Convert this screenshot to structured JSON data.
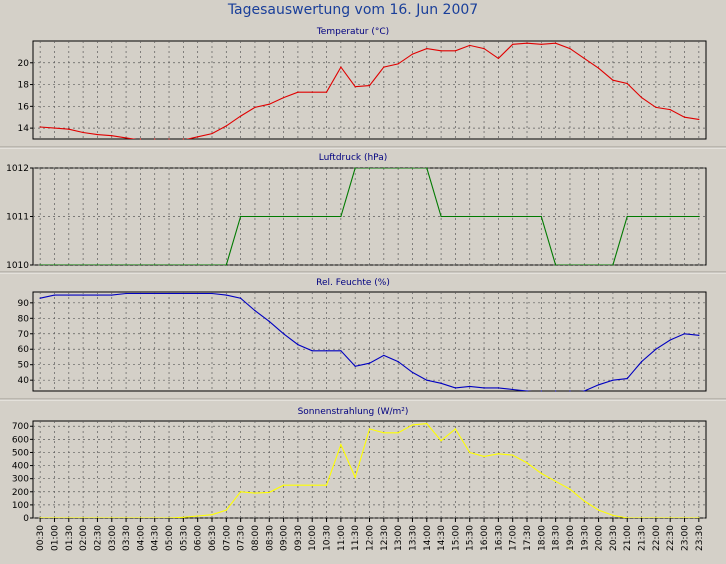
{
  "page": {
    "title": "Tagesauswertung vom 16. Jun 2007",
    "background": "#d4d0c8",
    "title_color": "#1a3f9a"
  },
  "time_labels": [
    "00:30",
    "01:00",
    "01:30",
    "02:00",
    "02:30",
    "03:00",
    "03:30",
    "04:00",
    "04:30",
    "05:00",
    "05:30",
    "06:00",
    "06:30",
    "07:00",
    "07:30",
    "08:00",
    "08:30",
    "09:00",
    "09:30",
    "10:00",
    "10:30",
    "11:00",
    "11:30",
    "12:00",
    "12:30",
    "13:00",
    "13:30",
    "14:00",
    "14:30",
    "15:00",
    "15:30",
    "16:00",
    "16:30",
    "17:00",
    "17:30",
    "18:00",
    "18:30",
    "19:00",
    "19:30",
    "20:00",
    "20:30",
    "21:00",
    "21:30",
    "22:00",
    "22:30",
    "23:00",
    "23:30"
  ],
  "chart_data": [
    {
      "type": "line",
      "title": "Temperatur (°C)",
      "color": "#e00000",
      "ylim": [
        13,
        22
      ],
      "yticks": [
        14,
        16,
        18,
        20
      ],
      "grid": true,
      "x": [
        "00:30",
        "01:00",
        "01:30",
        "02:00",
        "02:30",
        "03:00",
        "03:30",
        "04:00",
        "04:30",
        "05:00",
        "05:30",
        "06:00",
        "06:30",
        "07:00",
        "07:30",
        "08:00",
        "08:30",
        "09:00",
        "09:30",
        "10:00",
        "10:30",
        "11:00",
        "11:30",
        "12:00",
        "12:30",
        "13:00",
        "13:30",
        "14:00",
        "14:30",
        "15:00",
        "15:30",
        "16:00",
        "16:30",
        "17:00",
        "17:30",
        "18:00",
        "18:30",
        "19:00",
        "19:30",
        "20:00",
        "20:30",
        "21:00",
        "21:30",
        "22:00",
        "22:30",
        "23:00",
        "23:30"
      ],
      "values": [
        14.1,
        14.0,
        13.9,
        13.6,
        13.4,
        13.3,
        13.1,
        12.9,
        12.9,
        12.9,
        12.9,
        13.2,
        13.5,
        14.2,
        15.1,
        15.9,
        16.2,
        16.8,
        17.3,
        17.3,
        17.3,
        19.6,
        17.8,
        17.9,
        19.6,
        19.9,
        20.8,
        21.3,
        21.1,
        21.1,
        21.6,
        21.3,
        20.4,
        21.7,
        21.8,
        21.7,
        21.8,
        21.3,
        20.4,
        19.5,
        18.4,
        18.1,
        16.8,
        15.9,
        15.7,
        15.0,
        14.8
      ]
    },
    {
      "type": "line",
      "title": "Luftdruck (hPa)",
      "color": "#007a00",
      "ylim": [
        1010,
        1012
      ],
      "yticks": [
        1010,
        1011,
        1012
      ],
      "grid": true,
      "x": [
        "00:30",
        "01:00",
        "01:30",
        "02:00",
        "02:30",
        "03:00",
        "03:30",
        "04:00",
        "04:30",
        "05:00",
        "05:30",
        "06:00",
        "06:30",
        "07:00",
        "07:30",
        "08:00",
        "08:30",
        "09:00",
        "09:30",
        "10:00",
        "10:30",
        "11:00",
        "11:30",
        "12:00",
        "12:30",
        "13:00",
        "13:30",
        "14:00",
        "14:30",
        "15:00",
        "15:30",
        "16:00",
        "16:30",
        "17:00",
        "17:30",
        "18:00",
        "18:30",
        "19:00",
        "19:30",
        "20:00",
        "20:30",
        "21:00",
        "21:30",
        "22:00",
        "22:30",
        "23:00",
        "23:30"
      ],
      "values": [
        1010,
        1010,
        1010,
        1010,
        1010,
        1010,
        1010,
        1010,
        1010,
        1010,
        1010,
        1010,
        1010,
        1010,
        1011,
        1011,
        1011,
        1011,
        1011,
        1011,
        1011,
        1011,
        1012,
        1012,
        1012,
        1012,
        1012,
        1012,
        1011,
        1011,
        1011,
        1011,
        1011,
        1011,
        1011,
        1011,
        1010,
        1010,
        1010,
        1010,
        1010,
        1011,
        1011,
        1011,
        1011,
        1011,
        1011
      ]
    },
    {
      "type": "line",
      "title": "Rel. Feuchte (%)",
      "color": "#0000c0",
      "ylim": [
        33,
        97
      ],
      "yticks": [
        40,
        50,
        60,
        70,
        80,
        90
      ],
      "grid": true,
      "x": [
        "00:30",
        "01:00",
        "01:30",
        "02:00",
        "02:30",
        "03:00",
        "03:30",
        "04:00",
        "04:30",
        "05:00",
        "05:30",
        "06:00",
        "06:30",
        "07:00",
        "07:30",
        "08:00",
        "08:30",
        "09:00",
        "09:30",
        "10:00",
        "10:30",
        "11:00",
        "11:30",
        "12:00",
        "12:30",
        "13:00",
        "13:30",
        "14:00",
        "14:30",
        "15:00",
        "15:30",
        "16:00",
        "16:30",
        "17:00",
        "17:30",
        "18:00",
        "18:30",
        "19:00",
        "19:30",
        "20:00",
        "20:30",
        "21:00",
        "21:30",
        "22:00",
        "22:30",
        "23:00",
        "23:30"
      ],
      "values": [
        93,
        95,
        95,
        95,
        95,
        95,
        96,
        96,
        96,
        96,
        96,
        96,
        96,
        95,
        93,
        85,
        78,
        70,
        63,
        59,
        59,
        59,
        49,
        51,
        56,
        52,
        45,
        40,
        38,
        35,
        36,
        35,
        35,
        34,
        33,
        32,
        32,
        32,
        33,
        37,
        40,
        41,
        52,
        60,
        66,
        70,
        69
      ]
    },
    {
      "type": "line",
      "title": "Sonnenstrahlung (W/m²)",
      "color": "#ffff00",
      "ylim": [
        0,
        740
      ],
      "yticks": [
        0,
        100,
        200,
        300,
        400,
        500,
        600,
        700
      ],
      "grid": true,
      "x": [
        "00:30",
        "01:00",
        "01:30",
        "02:00",
        "02:30",
        "03:00",
        "03:30",
        "04:00",
        "04:30",
        "05:00",
        "05:30",
        "06:00",
        "06:30",
        "07:00",
        "07:30",
        "08:00",
        "08:30",
        "09:00",
        "09:30",
        "10:00",
        "10:30",
        "11:00",
        "11:30",
        "12:00",
        "12:30",
        "13:00",
        "13:30",
        "14:00",
        "14:30",
        "15:00",
        "15:30",
        "16:00",
        "16:30",
        "17:00",
        "17:30",
        "18:00",
        "18:30",
        "19:00",
        "19:30",
        "20:00",
        "20:30",
        "21:00",
        "21:30",
        "22:00",
        "22:30",
        "23:00",
        "23:30"
      ],
      "values": [
        0,
        0,
        0,
        0,
        0,
        0,
        0,
        0,
        0,
        0,
        5,
        15,
        25,
        60,
        200,
        190,
        195,
        250,
        250,
        250,
        250,
        560,
        310,
        680,
        650,
        650,
        710,
        720,
        590,
        680,
        500,
        470,
        490,
        480,
        420,
        340,
        280,
        220,
        130,
        60,
        20,
        0,
        0,
        0,
        0,
        0,
        0
      ]
    }
  ]
}
